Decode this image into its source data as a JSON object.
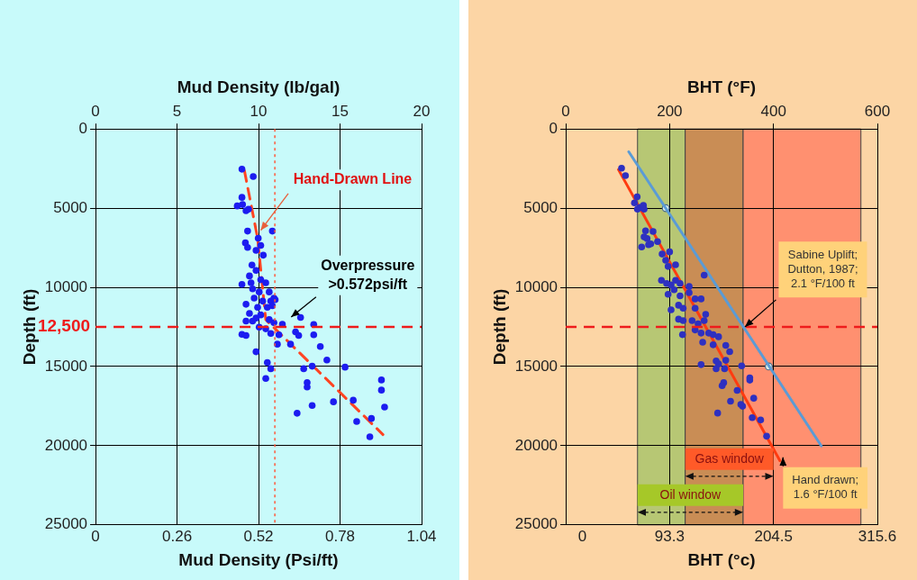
{
  "chart_data": [
    {
      "type": "scatter",
      "xlabel": "Mud Density (Psi/ft)",
      "x2label": "Mud Density (lb/gal)",
      "ylabel": "Depth (ft)",
      "xlim": [
        0,
        1.04
      ],
      "xticks": [
        0,
        0.26,
        0.52,
        0.78,
        1.04
      ],
      "x2lim": [
        0,
        20
      ],
      "x2ticks": [
        0,
        5,
        10,
        15,
        20
      ],
      "ylim": [
        25000,
        0
      ],
      "yticks": [
        0,
        5000,
        10000,
        15000,
        20000,
        25000
      ],
      "grid": true,
      "marker": "circle",
      "series": [
        {
          "type": "scatter",
          "color": "#1c1cf0",
          "x": [
            0.467,
            0.503,
            0.467,
            0.452,
            0.469,
            0.488,
            0.48,
            0.485,
            0.564,
            0.519,
            0.478,
            0.485,
            0.527,
            0.512,
            0.535,
            0.499,
            0.512,
            0.491,
            0.467,
            0.496,
            0.527,
            0.543,
            0.501,
            0.522,
            0.554,
            0.506,
            0.533,
            0.559,
            0.569,
            0.48,
            0.517,
            0.548,
            0.564,
            0.573,
            0.491,
            0.512,
            0.527,
            0.554,
            0.48,
            0.501,
            0.569,
            0.596,
            0.522,
            0.543,
            0.559,
            0.585,
            0.467,
            0.48,
            0.58,
            0.512,
            0.654,
            0.696,
            0.638,
            0.648,
            0.696,
            0.622,
            0.717,
            0.738,
            0.664,
            0.691,
            0.796,
            0.543,
            0.559,
            0.548,
            0.675,
            0.675,
            0.759,
            0.691,
            0.643,
            0.822,
            0.912,
            0.912,
            0.922,
            0.88,
            0.833,
            0.875
          ],
          "values": [
            2540,
            3000,
            4320,
            4860,
            4770,
            5060,
            5160,
            6450,
            6450,
            6900,
            7190,
            7480,
            7350,
            7670,
            7970,
            8590,
            8930,
            9280,
            9810,
            9710,
            9520,
            9710,
            10100,
            10290,
            10290,
            10680,
            10870,
            10870,
            10680,
            11070,
            11260,
            11260,
            11160,
            10780,
            11650,
            11940,
            11740,
            12040,
            12130,
            12130,
            12230,
            12330,
            12520,
            12620,
            12910,
            13000,
            12970,
            13040,
            13590,
            14070,
            11900,
            12350,
            12810,
            13040,
            13000,
            13590,
            13740,
            14590,
            15140,
            14980,
            15040,
            15760,
            15140,
            14750,
            16010,
            16300,
            17230,
            17460,
            17950,
            17130,
            15850,
            16490,
            17560,
            18280,
            18470,
            19440
          ]
        },
        {
          "type": "line",
          "color": "#ff4422",
          "line_style": "dashed",
          "marker": "none",
          "x": [
            0.475,
            0.517,
            0.543,
            0.917
          ],
          "values": [
            2640,
            6900,
            12040,
            19300
          ]
        }
      ],
      "ref_lines": [
        {
          "axis": "x",
          "value": 0.572,
          "color": "#ff5a3c",
          "line_style": "dotted"
        },
        {
          "axis": "y",
          "value": 12500,
          "label": "12,500",
          "color": "#ee1c1c",
          "line_style": "dashed"
        }
      ],
      "annotations": [
        {
          "text": "Hand-Drawn Line",
          "x": 0.527,
          "y": 6400
        },
        "Overpressure\n>0.572psi/ft"
      ]
    },
    {
      "type": "scatter",
      "xlabel": "BHT (°c)",
      "x2label": "BHT (°F)",
      "ylabel": "Depth (ft)",
      "xlim": [
        -17.8,
        315.6
      ],
      "xticks": [
        0,
        93.3,
        204.5,
        315.6
      ],
      "x2lim": [
        0,
        600
      ],
      "x2ticks": [
        0,
        200,
        400,
        600
      ],
      "ylim": [
        25000,
        0
      ],
      "yticks": [
        0,
        5000,
        10000,
        15000,
        20000,
        25000
      ],
      "grid": true,
      "marker": "circle",
      "series": [
        {
          "type": "scatter",
          "color": "#2e30c0",
          "x": [
            41.9,
            46.1,
            58.6,
            55.7,
            61.2,
            65.3,
            66.0,
            58.9,
            67.6,
            75.6,
            66.0,
            69.2,
            63.4,
            70.8,
            73.1,
            80.4,
            85.3,
            93.3,
            89.1,
            99.7,
            91.7,
            130.3,
            84.6,
            90.1,
            94.9,
            99.7,
            104.5,
            114.2,
            91.7,
            98.1,
            104.5,
            94.9,
            102.9,
            107.8,
            114.2,
            120.6,
            127.0,
            120.6,
            131.9,
            117.4,
            123.8,
            130.3,
            102.9,
            107.8,
            120.6,
            127.0,
            135.1,
            139.9,
            145.7,
            107.1,
            128.7,
            139.9,
            153.4,
            157.6,
            153.4,
            143.1,
            145.7,
            127.0,
            170.4,
            143.1,
            152.1,
            179.1,
            179.1,
            151.2,
            149.5,
            165.6,
            183.3,
            158.5,
            169.5,
            171.4,
            144.7,
            181.7,
            190.7,
            197.1
          ],
          "values": [
            2480,
            2950,
            4280,
            4670,
            4960,
            4820,
            5060,
            5060,
            6430,
            6470,
            6820,
            6920,
            7450,
            7310,
            7250,
            7110,
            7900,
            7760,
            8290,
            8580,
            8680,
            9230,
            9560,
            9760,
            9850,
            9560,
            9760,
            9950,
            10440,
            10150,
            10540,
            11420,
            11130,
            11320,
            10340,
            10730,
            10730,
            11320,
            11710,
            12100,
            12300,
            12100,
            12010,
            12100,
            12690,
            12890,
            12890,
            12990,
            13120,
            12990,
            13470,
            13630,
            13670,
            14060,
            14610,
            14650,
            14840,
            14880,
            14960,
            15140,
            15140,
            15720,
            15860,
            16020,
            16210,
            16510,
            17000,
            17190,
            17390,
            17510,
            17940,
            18230,
            18370,
            19400
          ]
        },
        {
          "type": "line",
          "color": "#ff3b10",
          "line_style": "solid",
          "marker": "none",
          "x": [
            38.6,
            211.3
          ],
          "values": [
            2570,
            20940
          ]
        },
        {
          "type": "line",
          "color": "#5b9bd5",
          "line_style": "solid",
          "marker": "none",
          "x": [
            49.6,
            255.7
          ],
          "values": [
            1440,
            20020
          ]
        },
        {
          "type": "scatter",
          "color": "#dcefe9",
          "marker": "circle",
          "x": [
            89.2,
            199.4
          ],
          "values": [
            5000,
            15000
          ]
        }
      ],
      "bands": [
        {
          "axis": "x",
          "from": 59,
          "to": 110,
          "color": "#b7c774"
        },
        {
          "axis": "x",
          "from": 110,
          "to": 172,
          "color": "#c98d55"
        },
        {
          "axis": "x",
          "from": 172,
          "to": 298,
          "color": "#ff9070"
        },
        {
          "axis": "x",
          "from": 110,
          "to": 204.5,
          "label": "Gas window",
          "color": "#ff5a28"
        },
        {
          "axis": "x",
          "from": 59,
          "to": 172,
          "label": "Oil window",
          "color": "#a6c828"
        }
      ],
      "ref_lines": [
        {
          "axis": "y",
          "value": 12500,
          "color": "#ee1c1c",
          "line_style": "dashed"
        }
      ],
      "annotations": [
        "Sabine Uplift;\nDutton, 1987;\n2.1 °F/100 ft",
        {
          "text": "Hand drawn;\n1.6 °F/100 ft",
          "x": 214.6,
          "y": 20730
        }
      ]
    }
  ]
}
